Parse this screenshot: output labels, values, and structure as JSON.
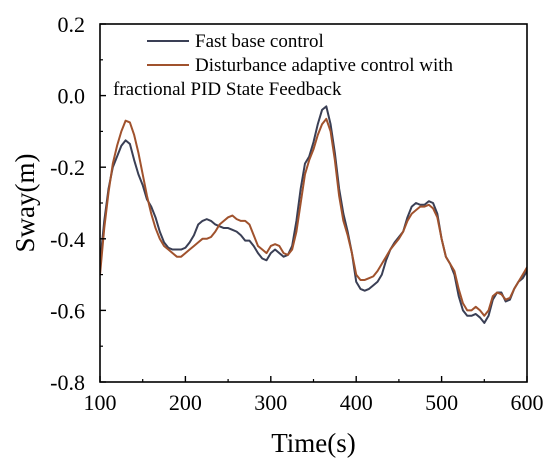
{
  "chart_data": {
    "type": "line",
    "xlabel": "Time(s)",
    "ylabel": "Sway(m)",
    "xlim": [
      100,
      600
    ],
    "ylim": [
      -0.8,
      0.2
    ],
    "xticks": [
      100,
      200,
      300,
      400,
      500,
      600
    ],
    "yticks": [
      0.2,
      0.0,
      -0.2,
      -0.4,
      -0.6,
      -0.8
    ],
    "xtick_labels": [
      "100",
      "200",
      "300",
      "400",
      "500",
      "600"
    ],
    "ytick_labels": [
      "0.2",
      "0.0",
      "-0.2",
      "-0.4",
      "-0.6",
      "-0.8"
    ],
    "grid": false,
    "legend": {
      "placement": "top-center",
      "entries": [
        "Fast base control",
        "Disturbance adaptive control with",
        "fractional  PID State Feedback"
      ]
    },
    "series": [
      {
        "name": "Fast base control",
        "color": "#3a3f55",
        "x": [
          100,
          105,
          110,
          115,
          120,
          125,
          130,
          135,
          140,
          145,
          150,
          155,
          160,
          165,
          170,
          175,
          180,
          185,
          190,
          195,
          200,
          205,
          210,
          215,
          220,
          225,
          230,
          235,
          240,
          245,
          250,
          255,
          260,
          265,
          270,
          275,
          280,
          285,
          290,
          295,
          300,
          305,
          310,
          315,
          320,
          325,
          330,
          335,
          340,
          345,
          350,
          355,
          360,
          365,
          370,
          375,
          380,
          385,
          390,
          395,
          400,
          405,
          410,
          415,
          420,
          425,
          430,
          435,
          440,
          445,
          450,
          455,
          460,
          465,
          470,
          475,
          480,
          485,
          490,
          495,
          500,
          505,
          510,
          515,
          520,
          525,
          530,
          535,
          540,
          545,
          550,
          555,
          560,
          565,
          570,
          575,
          580,
          585,
          590,
          595,
          600
        ],
        "y": [
          -0.47,
          -0.35,
          -0.26,
          -0.2,
          -0.17,
          -0.14,
          -0.125,
          -0.135,
          -0.18,
          -0.22,
          -0.25,
          -0.29,
          -0.31,
          -0.34,
          -0.38,
          -0.41,
          -0.425,
          -0.43,
          -0.43,
          -0.43,
          -0.425,
          -0.41,
          -0.39,
          -0.36,
          -0.35,
          -0.345,
          -0.35,
          -0.36,
          -0.365,
          -0.37,
          -0.37,
          -0.375,
          -0.38,
          -0.39,
          -0.405,
          -0.405,
          -0.42,
          -0.44,
          -0.455,
          -0.46,
          -0.44,
          -0.43,
          -0.44,
          -0.45,
          -0.445,
          -0.42,
          -0.35,
          -0.26,
          -0.19,
          -0.17,
          -0.13,
          -0.08,
          -0.04,
          -0.03,
          -0.08,
          -0.16,
          -0.26,
          -0.33,
          -0.38,
          -0.44,
          -0.52,
          -0.54,
          -0.545,
          -0.54,
          -0.53,
          -0.52,
          -0.5,
          -0.46,
          -0.43,
          -0.41,
          -0.395,
          -0.38,
          -0.34,
          -0.31,
          -0.3,
          -0.305,
          -0.305,
          -0.295,
          -0.3,
          -0.33,
          -0.4,
          -0.45,
          -0.47,
          -0.5,
          -0.56,
          -0.6,
          -0.615,
          -0.615,
          -0.61,
          -0.62,
          -0.635,
          -0.615,
          -0.57,
          -0.55,
          -0.55,
          -0.575,
          -0.57,
          -0.54,
          -0.52,
          -0.51,
          -0.49
        ]
      },
      {
        "name": "Disturbance adaptive control with fractional  PID State Feedback",
        "color": "#a0522d",
        "x": [
          100,
          105,
          110,
          115,
          120,
          125,
          130,
          135,
          140,
          145,
          150,
          155,
          160,
          165,
          170,
          175,
          180,
          185,
          190,
          195,
          200,
          205,
          210,
          215,
          220,
          225,
          230,
          235,
          240,
          245,
          250,
          255,
          260,
          265,
          270,
          275,
          280,
          285,
          290,
          295,
          300,
          305,
          310,
          315,
          320,
          325,
          330,
          335,
          340,
          345,
          350,
          355,
          360,
          365,
          370,
          375,
          380,
          385,
          390,
          395,
          400,
          405,
          410,
          415,
          420,
          425,
          430,
          435,
          440,
          445,
          450,
          455,
          460,
          465,
          470,
          475,
          480,
          485,
          490,
          495,
          500,
          505,
          510,
          515,
          520,
          525,
          530,
          535,
          540,
          545,
          550,
          555,
          560,
          565,
          570,
          575,
          580,
          585,
          590,
          595,
          600
        ],
        "y": [
          -0.5,
          -0.37,
          -0.27,
          -0.19,
          -0.14,
          -0.1,
          -0.07,
          -0.075,
          -0.11,
          -0.16,
          -0.22,
          -0.28,
          -0.33,
          -0.37,
          -0.4,
          -0.42,
          -0.43,
          -0.44,
          -0.45,
          -0.45,
          -0.44,
          -0.43,
          -0.42,
          -0.41,
          -0.4,
          -0.4,
          -0.395,
          -0.38,
          -0.36,
          -0.35,
          -0.34,
          -0.335,
          -0.345,
          -0.35,
          -0.35,
          -0.36,
          -0.39,
          -0.42,
          -0.43,
          -0.44,
          -0.42,
          -0.415,
          -0.42,
          -0.44,
          -0.445,
          -0.43,
          -0.38,
          -0.3,
          -0.22,
          -0.18,
          -0.15,
          -0.11,
          -0.08,
          -0.065,
          -0.1,
          -0.18,
          -0.28,
          -0.35,
          -0.39,
          -0.44,
          -0.5,
          -0.515,
          -0.515,
          -0.51,
          -0.505,
          -0.49,
          -0.47,
          -0.45,
          -0.43,
          -0.415,
          -0.4,
          -0.38,
          -0.35,
          -0.33,
          -0.32,
          -0.31,
          -0.31,
          -0.305,
          -0.315,
          -0.34,
          -0.4,
          -0.45,
          -0.47,
          -0.49,
          -0.54,
          -0.58,
          -0.6,
          -0.6,
          -0.59,
          -0.6,
          -0.615,
          -0.6,
          -0.56,
          -0.55,
          -0.555,
          -0.57,
          -0.565,
          -0.54,
          -0.52,
          -0.5,
          -0.48
        ]
      }
    ]
  }
}
